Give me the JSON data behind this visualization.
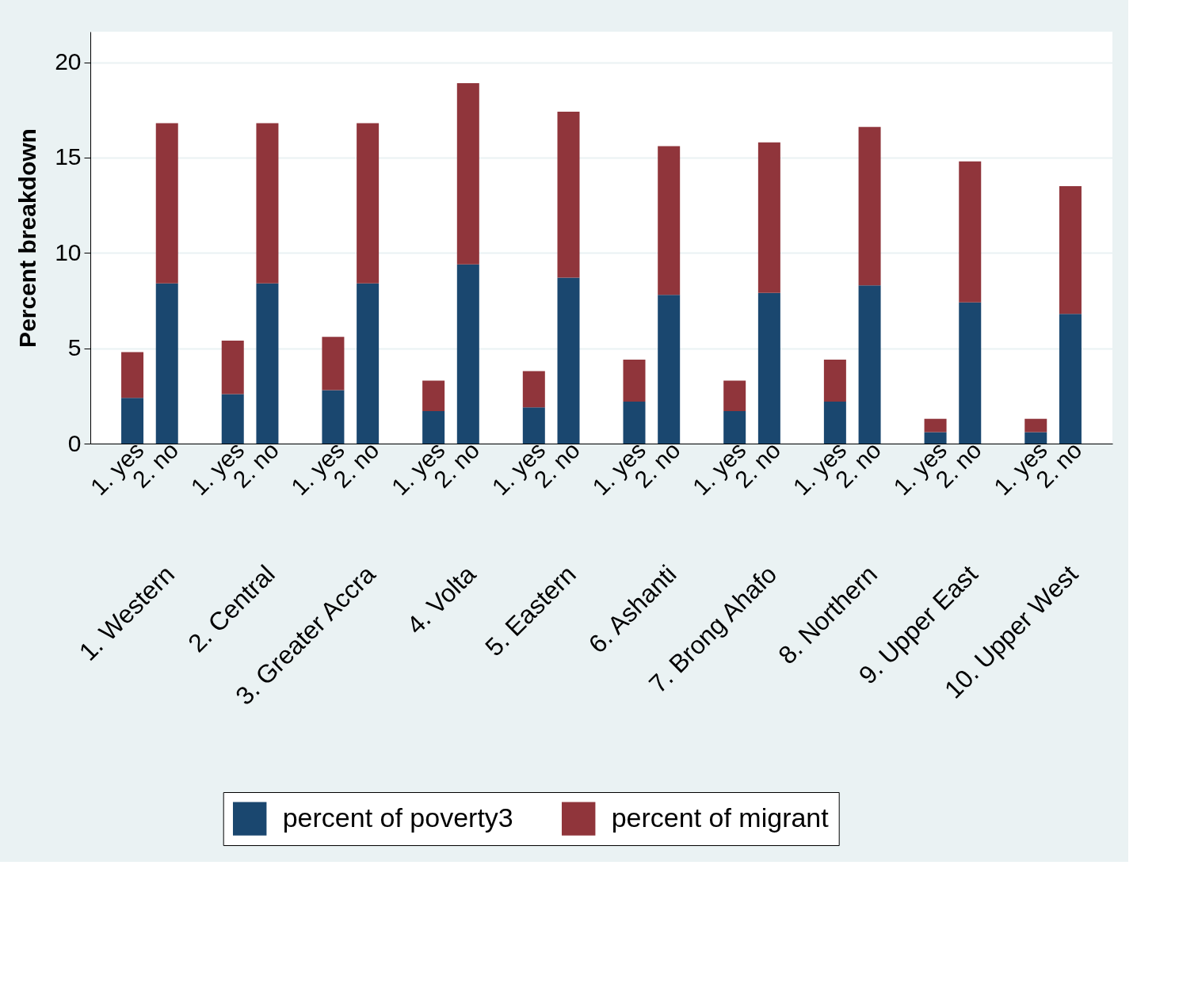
{
  "chart_data": {
    "type": "bar",
    "stacked": true,
    "ylabel": "Percent breakdown",
    "categories": [
      "1. yes",
      "2. no",
      "1. yes",
      "2. no",
      "1. yes",
      "2. no",
      "1. yes",
      "2. no",
      "1. yes",
      "2. no",
      "1. yes",
      "2. no",
      "1. yes",
      "2. no",
      "1. yes",
      "2. no",
      "1. yes",
      "2. no",
      "1. yes",
      "2. no"
    ],
    "annotations": [
      "1. Western",
      "2. Central",
      "3. Greater Accra",
      "4. Volta",
      "5. Eastern",
      "6. Ashanti",
      "7. Brong Ahafo",
      "8. Northern",
      "9. Upper East",
      "10. Upper West"
    ],
    "series": [
      {
        "name": "percent of poverty3",
        "color": "#1a476f",
        "values": [
          2.4,
          8.4,
          2.6,
          8.4,
          2.8,
          8.4,
          1.7,
          9.4,
          1.9,
          8.7,
          2.2,
          7.8,
          1.7,
          7.9,
          2.2,
          8.3,
          0.6,
          7.4,
          0.6,
          6.8
        ]
      },
      {
        "name": "percent of migrant",
        "color": "#90353b",
        "values": [
          2.4,
          8.4,
          2.8,
          8.4,
          2.8,
          8.4,
          1.6,
          9.5,
          1.9,
          8.7,
          2.2,
          7.8,
          1.6,
          7.9,
          2.2,
          8.3,
          0.7,
          7.4,
          0.7,
          6.7
        ]
      }
    ],
    "ylim": [
      0,
      21.6
    ],
    "yticks": [
      0,
      5,
      10,
      15,
      20
    ],
    "grid": "y",
    "legend": "bottom"
  }
}
